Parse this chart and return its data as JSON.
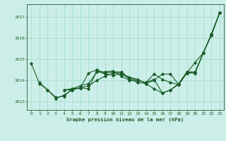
{
  "background_color": "#cceee8",
  "grid_color": "#99ddcc",
  "line_color": "#1a5c2a",
  "title": "Graphe pression niveau de la mer (hPa)",
  "ylim": [
    1012.6,
    1017.6
  ],
  "xlim": [
    -0.5,
    23.5
  ],
  "yticks": [
    1013,
    1014,
    1015,
    1016,
    1017
  ],
  "xticks": [
    0,
    1,
    2,
    3,
    4,
    5,
    6,
    7,
    8,
    9,
    10,
    11,
    12,
    13,
    14,
    15,
    16,
    17,
    18,
    19,
    20,
    21,
    22,
    23
  ],
  "series": [
    [
      1014.8,
      1013.85,
      1013.55,
      1013.2,
      1013.25,
      1013.6,
      1013.65,
      1013.6,
      1014.45,
      1014.3,
      1014.25,
      1014.3,
      1014.15,
      1014.05,
      1013.85,
      1014.0,
      1014.3,
      1014.3,
      1013.8,
      1014.4,
      1014.35,
      1015.3,
      1016.2,
      1017.2
    ],
    [
      null,
      1013.9,
      1013.55,
      1013.15,
      1013.3,
      1013.55,
      1013.65,
      1014.35,
      1014.5,
      1014.35,
      1014.4,
      1014.4,
      1014.1,
      1014.0,
      1013.9,
      1014.05,
      1013.4,
      1013.55,
      1013.85,
      1014.4,
      1014.4,
      1015.3,
      1016.15,
      1017.2
    ],
    [
      null,
      null,
      null,
      null,
      1013.55,
      1013.55,
      1013.65,
      1013.75,
      1014.0,
      1014.2,
      1014.35,
      1014.35,
      1014.05,
      1013.9,
      1013.85,
      1013.6,
      1013.4,
      1013.55,
      1013.8,
      1014.35,
      1014.85,
      1015.3,
      1016.15,
      1017.2
    ],
    [
      null,
      null,
      null,
      null,
      1013.55,
      1013.6,
      1013.75,
      1013.85,
      1014.4,
      1014.4,
      1014.45,
      1014.2,
      1014.0,
      1014.0,
      1013.9,
      1014.3,
      1014.05,
      1013.9,
      1013.8,
      1014.35,
      1014.35,
      1015.3,
      1016.15,
      1017.2
    ]
  ]
}
